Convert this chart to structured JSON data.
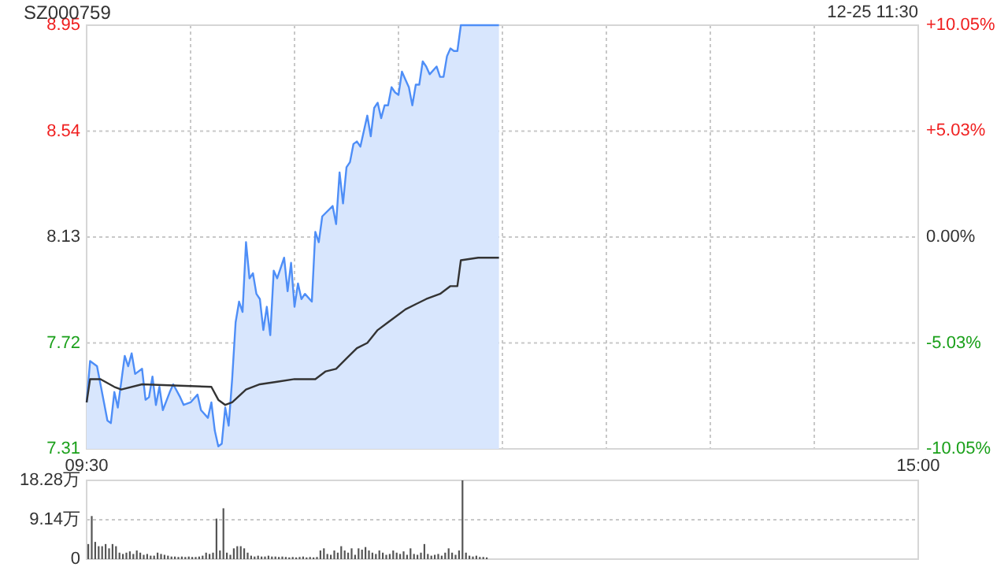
{
  "chart_data": [
    {
      "type": "line",
      "title": "SZ000759",
      "annotations": [
        "12-25 11:30"
      ],
      "grid": true,
      "categories": [
        "09:30",
        null,
        null,
        null,
        null,
        null,
        null,
        null,
        null,
        null,
        null,
        null,
        null,
        null,
        null,
        null,
        null,
        null,
        null,
        null,
        null,
        null,
        null,
        null,
        null,
        null,
        null,
        null,
        null,
        null,
        null,
        null,
        null,
        null,
        null,
        null,
        null,
        null,
        null,
        null,
        null,
        null,
        null,
        null,
        null,
        null,
        null,
        null,
        null,
        null,
        null,
        null,
        null,
        null,
        null,
        null,
        null,
        null,
        null,
        null,
        null,
        null,
        null,
        null,
        null,
        null,
        null,
        null,
        null,
        null,
        null,
        null,
        null,
        null,
        null,
        null,
        null,
        null,
        null,
        null,
        null,
        null,
        null,
        null,
        null,
        null,
        null,
        null,
        null,
        null,
        null,
        null,
        null,
        null,
        null,
        null,
        null,
        null,
        null,
        null,
        null,
        null,
        null,
        null,
        null,
        null,
        null,
        null,
        null,
        null,
        null,
        null,
        null,
        null,
        null,
        null,
        null,
        null,
        null,
        null,
        null,
        null,
        null,
        null,
        null,
        null,
        null,
        null,
        null,
        null,
        null,
        null,
        null,
        null,
        null,
        null,
        null,
        null,
        null,
        null,
        null,
        null,
        null,
        null,
        null,
        null,
        null,
        null,
        null,
        null,
        null,
        null,
        null,
        null,
        null,
        null,
        null,
        null,
        null,
        null,
        null,
        null,
        null,
        null,
        null,
        null,
        null,
        null,
        null,
        null,
        null,
        null,
        null,
        null,
        null,
        null,
        null,
        null,
        null,
        null,
        null,
        null,
        null,
        null,
        null,
        null,
        null,
        null,
        null,
        null,
        null,
        null,
        null,
        null,
        null,
        null,
        null,
        null,
        null,
        null,
        null,
        null,
        null,
        null,
        null,
        null,
        null,
        null,
        null,
        null,
        null,
        null,
        null,
        null,
        null,
        null,
        null,
        null,
        null,
        null,
        null,
        null,
        null,
        null,
        null,
        null,
        null,
        null,
        null,
        null,
        null,
        null,
        null,
        null,
        null,
        null,
        null,
        null,
        null,
        null,
        "15:00"
      ],
      "ylim": [
        7.31,
        8.95
      ],
      "yticks": [
        7.31,
        7.72,
        8.13,
        8.54,
        8.95
      ],
      "y2lim": [
        -10.05,
        10.05
      ],
      "y2ticks": [
        {
          "value": -10.05,
          "label": "-10.05%"
        },
        {
          "value": -5.03,
          "label": "-5.03%"
        },
        {
          "value": 0,
          "label": "0.00%"
        },
        {
          "value": 5.03,
          "label": "+5.03%"
        },
        {
          "value": 10.05,
          "label": "+10.05%"
        }
      ],
      "series": [
        {
          "type": "area",
          "color": "#4e8ef7",
          "values": [
            7.49,
            7.65,
            null,
            7.63,
            7.56,
            null,
            7.42,
            7.41,
            7.53,
            7.47,
            null,
            7.67,
            7.63,
            7.68,
            7.6,
            null,
            7.62,
            7.5,
            7.51,
            7.59,
            7.48,
            7.55,
            7.46,
            null,
            7.53,
            7.56,
            null,
            7.51,
            7.48,
            null,
            7.49,
            null,
            7.52,
            7.46,
            null,
            7.43,
            7.49,
            7.38,
            7.32,
            7.33,
            7.47,
            7.4,
            7.58,
            7.8,
            7.88,
            7.84,
            8.11,
            7.97,
            7.99,
            7.91,
            7.89,
            7.77,
            7.86,
            7.75,
            8.0,
            7.97,
            null,
            8.05,
            7.92,
            8.03,
            7.86,
            7.95,
            7.89,
            7.91,
            null,
            7.88,
            8.15,
            8.11,
            8.21,
            null,
            null,
            8.25,
            8.18,
            8.38,
            8.26,
            8.4,
            8.42,
            8.49,
            8.5,
            8.48,
            8.54,
            8.6,
            8.52,
            8.63,
            8.65,
            8.59,
            8.64,
            8.64,
            8.71,
            8.69,
            8.68,
            8.77,
            8.74,
            8.71,
            8.64,
            8.72,
            8.72,
            8.81,
            8.79,
            8.76,
            null,
            8.79,
            8.75,
            8.75,
            8.83,
            8.86,
            8.85,
            8.85,
            8.95,
            8.95,
            8.95,
            8.95,
            8.95,
            8.95,
            8.95,
            8.95,
            8.95,
            8.95,
            8.95,
            8.95,
            null,
            null,
            null,
            null,
            null,
            null,
            null,
            null,
            null,
            null,
            null,
            null,
            null,
            null,
            null,
            null,
            null,
            null,
            null,
            null,
            null,
            null,
            null,
            null,
            null,
            null,
            null,
            null,
            null,
            null,
            null,
            null,
            null,
            null,
            null,
            null,
            null,
            null,
            null,
            null,
            null,
            null,
            null,
            null,
            null,
            null,
            null,
            null,
            null,
            null,
            null,
            null,
            null,
            null,
            null,
            null,
            null,
            null,
            null,
            null,
            null,
            null,
            null,
            null,
            null,
            null,
            null,
            null,
            null,
            null,
            null,
            null,
            null,
            null,
            null,
            null,
            null,
            null,
            null,
            null,
            null,
            null,
            null,
            null,
            null,
            null,
            null,
            null,
            null,
            null,
            null,
            null,
            null,
            null,
            null,
            null,
            null,
            null,
            null,
            null,
            null,
            null,
            null,
            null,
            null,
            null,
            null,
            null,
            null,
            null,
            null,
            null,
            null,
            null,
            null,
            null,
            null,
            null,
            null,
            null,
            null
          ]
        },
        {
          "color": "#333333",
          "values": [
            7.49,
            7.58,
            null,
            null,
            7.58,
            null,
            null,
            null,
            7.55,
            null,
            7.54,
            null,
            null,
            null,
            null,
            null,
            7.56,
            null,
            null,
            null,
            null,
            null,
            null,
            null,
            null,
            null,
            null,
            null,
            null,
            null,
            null,
            null,
            null,
            null,
            null,
            null,
            7.55,
            null,
            7.5,
            null,
            7.48,
            null,
            7.49,
            null,
            null,
            null,
            7.54,
            null,
            null,
            null,
            7.56,
            null,
            null,
            null,
            null,
            7.57,
            null,
            null,
            null,
            null,
            7.58,
            null,
            null,
            null,
            null,
            null,
            7.58,
            null,
            null,
            7.61,
            null,
            null,
            7.62,
            null,
            null,
            7.66,
            null,
            null,
            7.7,
            null,
            null,
            7.72,
            null,
            null,
            7.77,
            null,
            null,
            7.8,
            null,
            null,
            null,
            null,
            7.85,
            null,
            null,
            7.87,
            null,
            null,
            7.89,
            null,
            null,
            null,
            7.91,
            null,
            null,
            7.94,
            null,
            7.94,
            8.04,
            null,
            null,
            null,
            null,
            8.05,
            null,
            null,
            null,
            null,
            null,
            8.05,
            null,
            null,
            null,
            null,
            null,
            null,
            null,
            null,
            null,
            null,
            null,
            null,
            null,
            null,
            null,
            null,
            null,
            null,
            null,
            null,
            null,
            null,
            null,
            null,
            null,
            null,
            null,
            null,
            null,
            null,
            null,
            null,
            null,
            null,
            null,
            null,
            null,
            null,
            null,
            null,
            null,
            null,
            null,
            null,
            null,
            null,
            null,
            null,
            null,
            null,
            null,
            null,
            null,
            null,
            null,
            null,
            null,
            null,
            null,
            null,
            null,
            null,
            null,
            null,
            null,
            null,
            null,
            null,
            null,
            null,
            null,
            null,
            null,
            null,
            null,
            null,
            null,
            null,
            null,
            null,
            null,
            null,
            null,
            null,
            null,
            null,
            null,
            null,
            null,
            null,
            null,
            null,
            null,
            null,
            null,
            null,
            null,
            null,
            null,
            null,
            null,
            null,
            null,
            null,
            null,
            null,
            null,
            null,
            null,
            null,
            null,
            null,
            null,
            null,
            null,
            null,
            null,
            null,
            null,
            null,
            null
          ]
        }
      ]
    },
    {
      "type": "bar",
      "grid": "y",
      "tick_labels": "y",
      "color": "#555555",
      "categories": [
        null,
        null,
        null,
        null,
        null,
        null,
        null,
        null,
        null,
        null,
        null,
        null,
        null,
        null,
        null,
        null,
        null,
        null,
        null,
        null,
        null,
        null,
        null,
        null,
        null,
        null,
        null,
        null,
        null,
        null,
        null,
        null,
        null,
        null,
        null,
        null,
        null,
        null,
        null,
        null,
        null,
        null,
        null,
        null,
        null,
        null,
        null,
        null,
        null,
        null,
        null,
        null,
        null,
        null,
        null,
        null,
        null,
        null,
        null,
        null,
        null,
        null,
        null,
        null,
        null,
        null,
        null,
        null,
        null,
        null,
        null,
        null,
        null,
        null,
        null,
        null,
        null,
        null,
        null,
        null,
        null,
        null,
        null,
        null,
        null,
        null,
        null,
        null,
        null,
        null,
        null,
        null,
        null,
        null,
        null,
        null,
        null,
        null,
        null,
        null,
        null,
        null,
        null,
        null,
        null,
        null,
        null,
        null,
        null,
        null,
        null,
        null,
        null,
        null,
        null,
        null,
        null,
        null,
        null,
        null,
        null,
        null,
        null,
        null,
        null,
        null,
        null,
        null,
        null,
        null,
        null,
        null,
        null,
        null,
        null,
        null,
        null,
        null,
        null,
        null,
        null,
        null,
        null,
        null,
        null,
        null,
        null,
        null,
        null,
        null,
        null,
        null,
        null,
        null,
        null,
        null,
        null,
        null,
        null,
        null,
        null,
        null,
        null,
        null,
        null,
        null,
        null,
        null,
        null,
        null,
        null,
        null,
        null,
        null,
        null,
        null,
        null,
        null,
        null,
        null,
        null,
        null,
        null,
        null,
        null,
        null,
        null,
        null,
        null,
        null,
        null,
        null,
        null,
        null,
        null,
        null,
        null,
        null,
        null,
        null,
        null,
        null,
        null,
        null,
        null,
        null,
        null,
        null,
        null,
        null,
        null,
        null,
        null,
        null,
        null,
        null,
        null,
        null,
        null,
        null,
        null,
        null,
        null,
        null,
        null,
        null,
        null,
        null,
        null,
        null,
        null,
        null,
        null,
        null,
        null,
        null,
        null,
        null,
        null,
        null,
        null
      ],
      "ylim": [
        0,
        18.28
      ],
      "yticks": [
        0,
        {
          "value": 9.14,
          "label": "9.14万"
        },
        {
          "value": 18.28,
          "label": "18.28万"
        }
      ],
      "values": [
        3.5,
        10,
        4,
        3,
        3,
        3.5,
        2.5,
        3.5,
        3,
        1.5,
        1.2,
        1.5,
        1.8,
        1.2,
        2,
        1.5,
        1,
        1.2,
        0.8,
        0.8,
        1.5,
        1.2,
        1,
        0.8,
        0.6,
        0.6,
        0.5,
        0.6,
        0.5,
        0.6,
        0.5,
        0.5,
        0.6,
        0.8,
        1.5,
        1.2,
        1.5,
        9.4,
        2,
        11.8,
        1.5,
        1,
        2.5,
        3,
        3,
        2.5,
        1.5,
        0.8,
        0.6,
        0.8,
        0.6,
        0.6,
        0.8,
        0.6,
        0.6,
        0.5,
        0.6,
        0.5,
        0.4,
        0.5,
        0.4,
        0.5,
        0.6,
        0.4,
        0.5,
        0.4,
        0.5,
        2,
        2.5,
        1.2,
        1,
        2,
        1.5,
        3,
        2,
        1.5,
        2.5,
        1,
        2.5,
        2.2,
        2.8,
        2,
        1.5,
        1.2,
        2,
        1.5,
        1,
        1.2,
        2,
        1.5,
        1.2,
        1.8,
        1,
        2.5,
        1.2,
        1,
        1.5,
        3.5,
        1.2,
        0.8,
        1,
        1.2,
        0.8,
        1.5,
        2.5,
        1.5,
        1,
        2,
        18.28,
        1.5,
        0.8,
        0.6,
        0.8,
        0.5,
        0.5,
        0.4,
        null,
        null,
        null,
        null,
        null,
        null,
        null,
        null,
        null,
        null,
        null,
        null,
        null,
        null,
        null,
        null,
        null,
        null,
        null,
        null,
        null,
        null,
        null,
        null,
        null,
        null,
        null,
        null,
        null,
        null,
        null,
        null,
        null,
        null,
        null,
        null,
        null,
        null,
        null,
        null,
        null,
        null,
        null,
        null,
        null,
        null,
        null,
        null,
        null,
        null,
        null,
        null,
        null,
        null,
        null,
        null,
        null,
        null,
        null,
        null,
        null,
        null,
        null,
        null,
        null,
        null,
        null,
        null,
        null,
        null,
        null,
        null,
        null,
        null,
        null,
        null,
        null,
        null,
        null,
        null,
        null,
        null,
        null,
        null,
        null,
        null,
        null,
        null,
        null,
        null,
        null,
        null,
        null,
        null,
        null,
        null,
        null,
        null,
        null,
        null,
        null,
        null,
        null,
        null,
        null,
        null,
        null,
        null,
        null,
        null,
        null,
        null,
        null,
        null,
        null,
        null,
        null,
        null,
        null,
        null,
        null,
        null,
        null,
        null,
        null
      ]
    }
  ]
}
